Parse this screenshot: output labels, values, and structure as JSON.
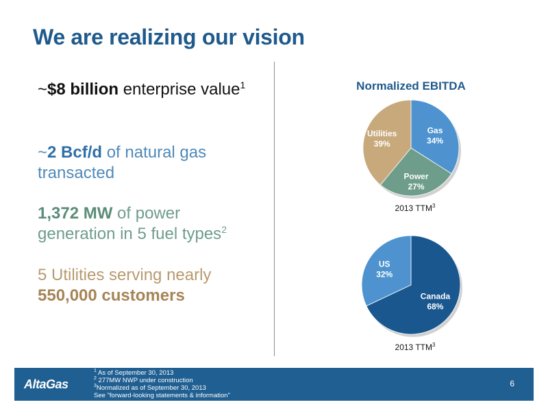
{
  "title": "We are realizing our vision",
  "stats": {
    "ev_prefix": "~",
    "ev_bold": "$8 billion",
    "ev_rest": " enterprise value",
    "ev_sup": "1",
    "gas_prefix": "~",
    "gas_bold": "2 Bcf/d",
    "gas_rest": " of natural gas transacted",
    "power_bold": "1,372 MW",
    "power_rest": " of power generation in 5 fuel types",
    "power_sup": "2",
    "util_text": "5 Utilities serving nearly",
    "util_bold": "550,000 customers"
  },
  "chart_data": [
    {
      "type": "pie",
      "title": "Normalized EBITDA",
      "caption": "2013 TTM",
      "caption_sup": "3",
      "slices": [
        {
          "label": "Gas",
          "value": 34,
          "pct": "34%",
          "color": "#4e93cf"
        },
        {
          "label": "Power",
          "value": 27,
          "pct": "27%",
          "color": "#6e9d8b"
        },
        {
          "label": "Utilities",
          "value": 39,
          "pct": "39%",
          "color": "#c8a97b"
        }
      ]
    },
    {
      "type": "pie",
      "title": "",
      "caption": "2013 TTM",
      "caption_sup": "3",
      "slices": [
        {
          "label": "Canada",
          "value": 68,
          "pct": "68%",
          "color": "#1a578f"
        },
        {
          "label": "US",
          "value": 32,
          "pct": "32%",
          "color": "#4e93cf"
        }
      ]
    }
  ],
  "footer": {
    "logo": "AltaGas",
    "notes": [
      {
        "sup": "1",
        "text": " As of September 30, 2013"
      },
      {
        "sup": "2",
        "text": " 277MW NWP under construction"
      },
      {
        "sup": "3",
        "text": "Normalized as of September 30, 2013"
      },
      {
        "sup": "",
        "text": "See \"forward-looking statements & information\""
      }
    ],
    "page": "6"
  }
}
